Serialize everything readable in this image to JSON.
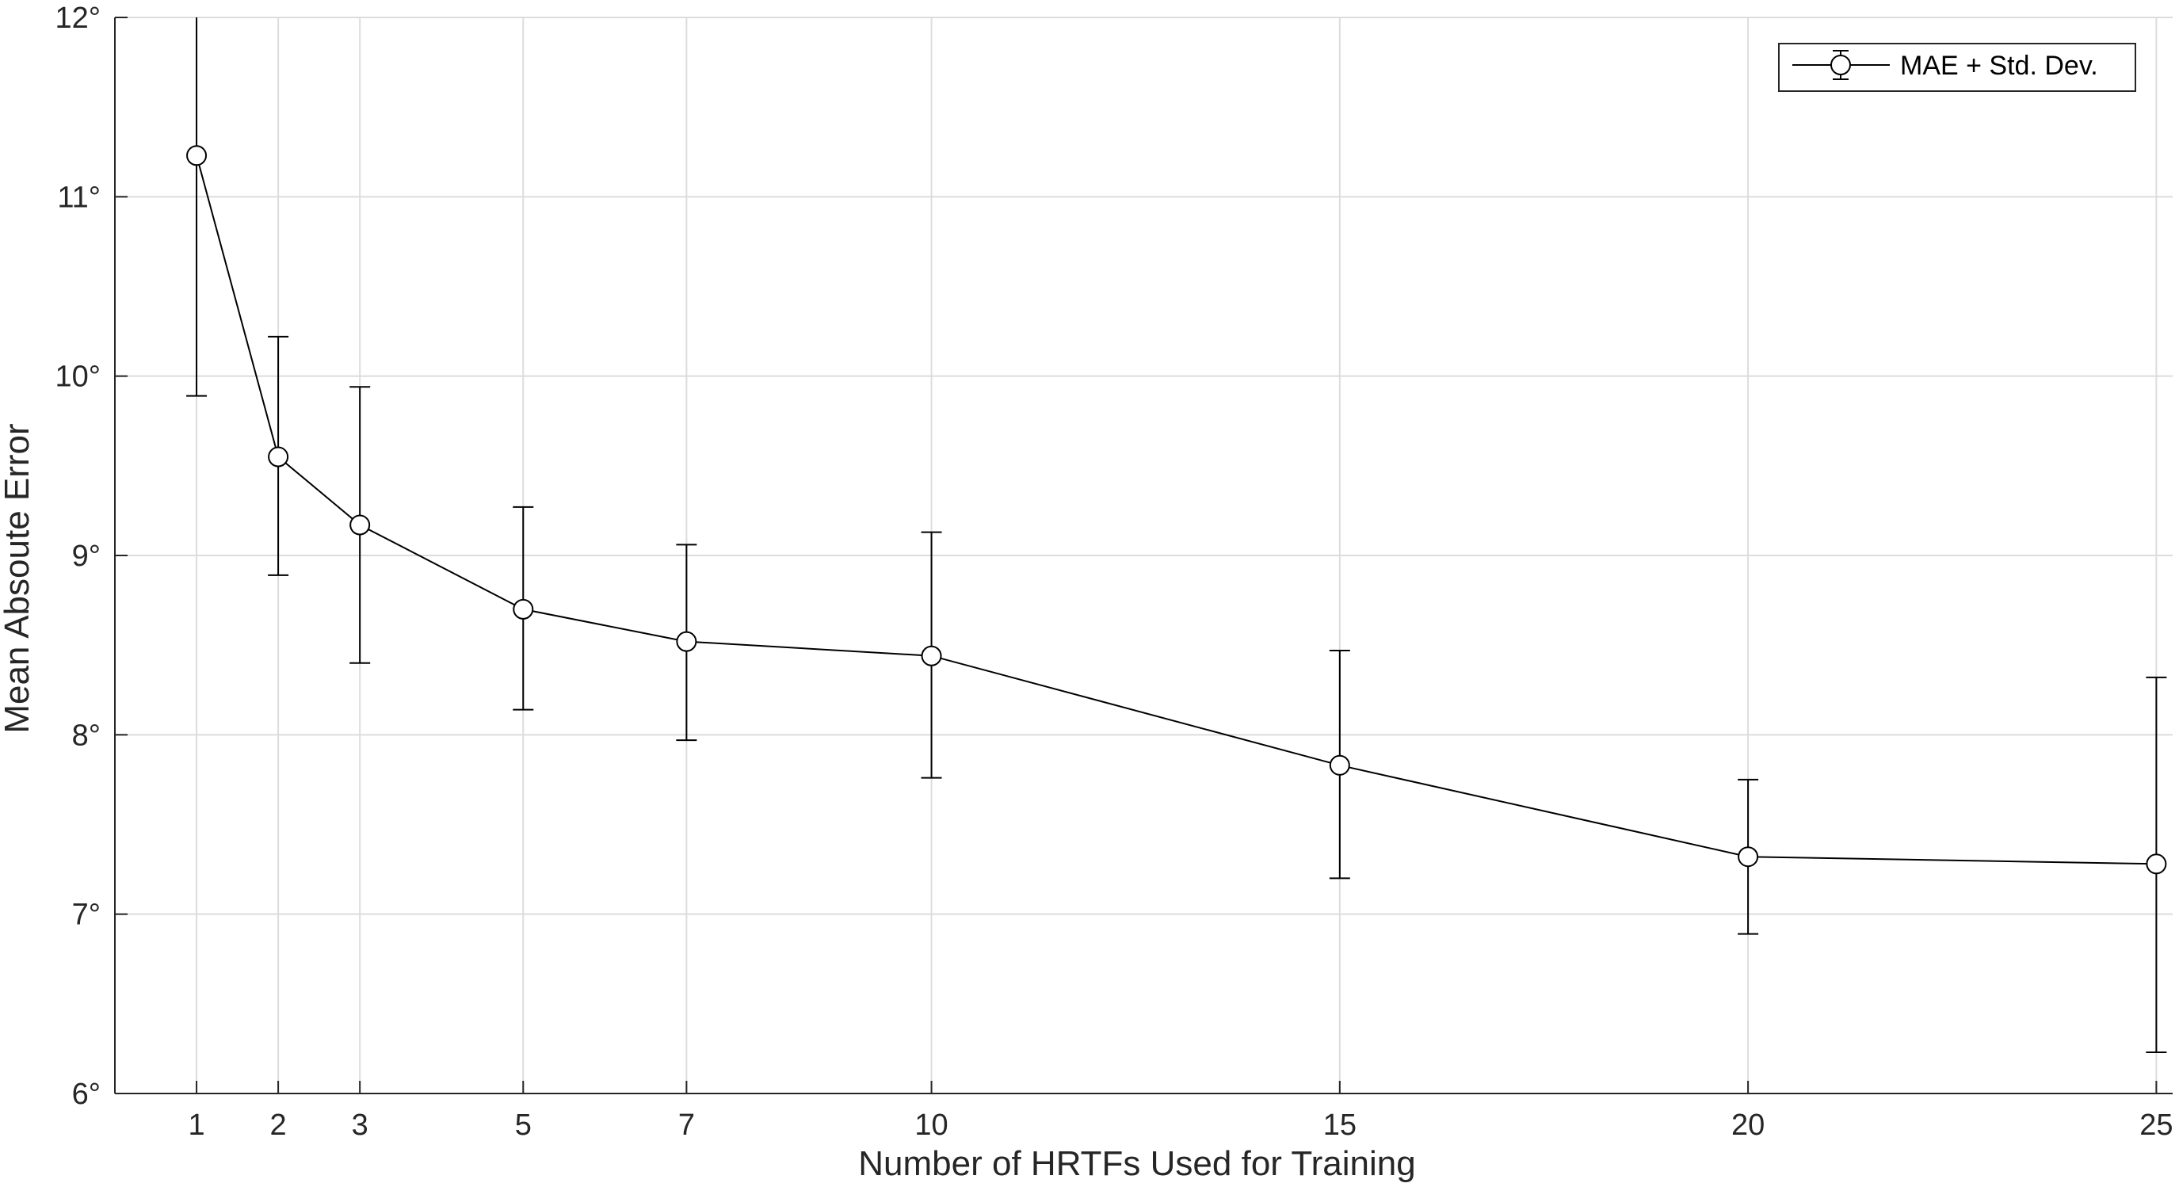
{
  "chart_data": {
    "type": "line",
    "xlabel": "Number of HRTFs Used for Training",
    "ylabel": "Mean Absoute Error",
    "x": [
      1,
      2,
      3,
      5,
      7,
      10,
      15,
      20,
      25
    ],
    "xticks": [
      "1",
      "2",
      "3",
      "5",
      "7",
      "10",
      "15",
      "20",
      "25"
    ],
    "xlim": [
      0,
      25.2
    ],
    "ylim": [
      6,
      12
    ],
    "yticks": [
      6,
      7,
      8,
      9,
      10,
      11,
      12
    ],
    "ytick_labels": [
      "6°",
      "7°",
      "8°",
      "9°",
      "10°",
      "11°",
      "12°"
    ],
    "grid": true,
    "legend_position": "top-right",
    "series": [
      {
        "name": "MAE + Std. Dev.",
        "values": [
          11.23,
          9.55,
          9.17,
          8.7,
          8.52,
          8.44,
          7.83,
          7.32,
          7.28
        ],
        "err_low": [
          9.89,
          8.89,
          8.4,
          8.14,
          7.97,
          7.76,
          7.2,
          6.89,
          6.23
        ],
        "err_high": [
          12.57,
          10.22,
          9.94,
          9.27,
          9.06,
          9.13,
          8.47,
          7.75,
          8.32
        ],
        "marker": "circle",
        "color": "#000000"
      }
    ]
  }
}
